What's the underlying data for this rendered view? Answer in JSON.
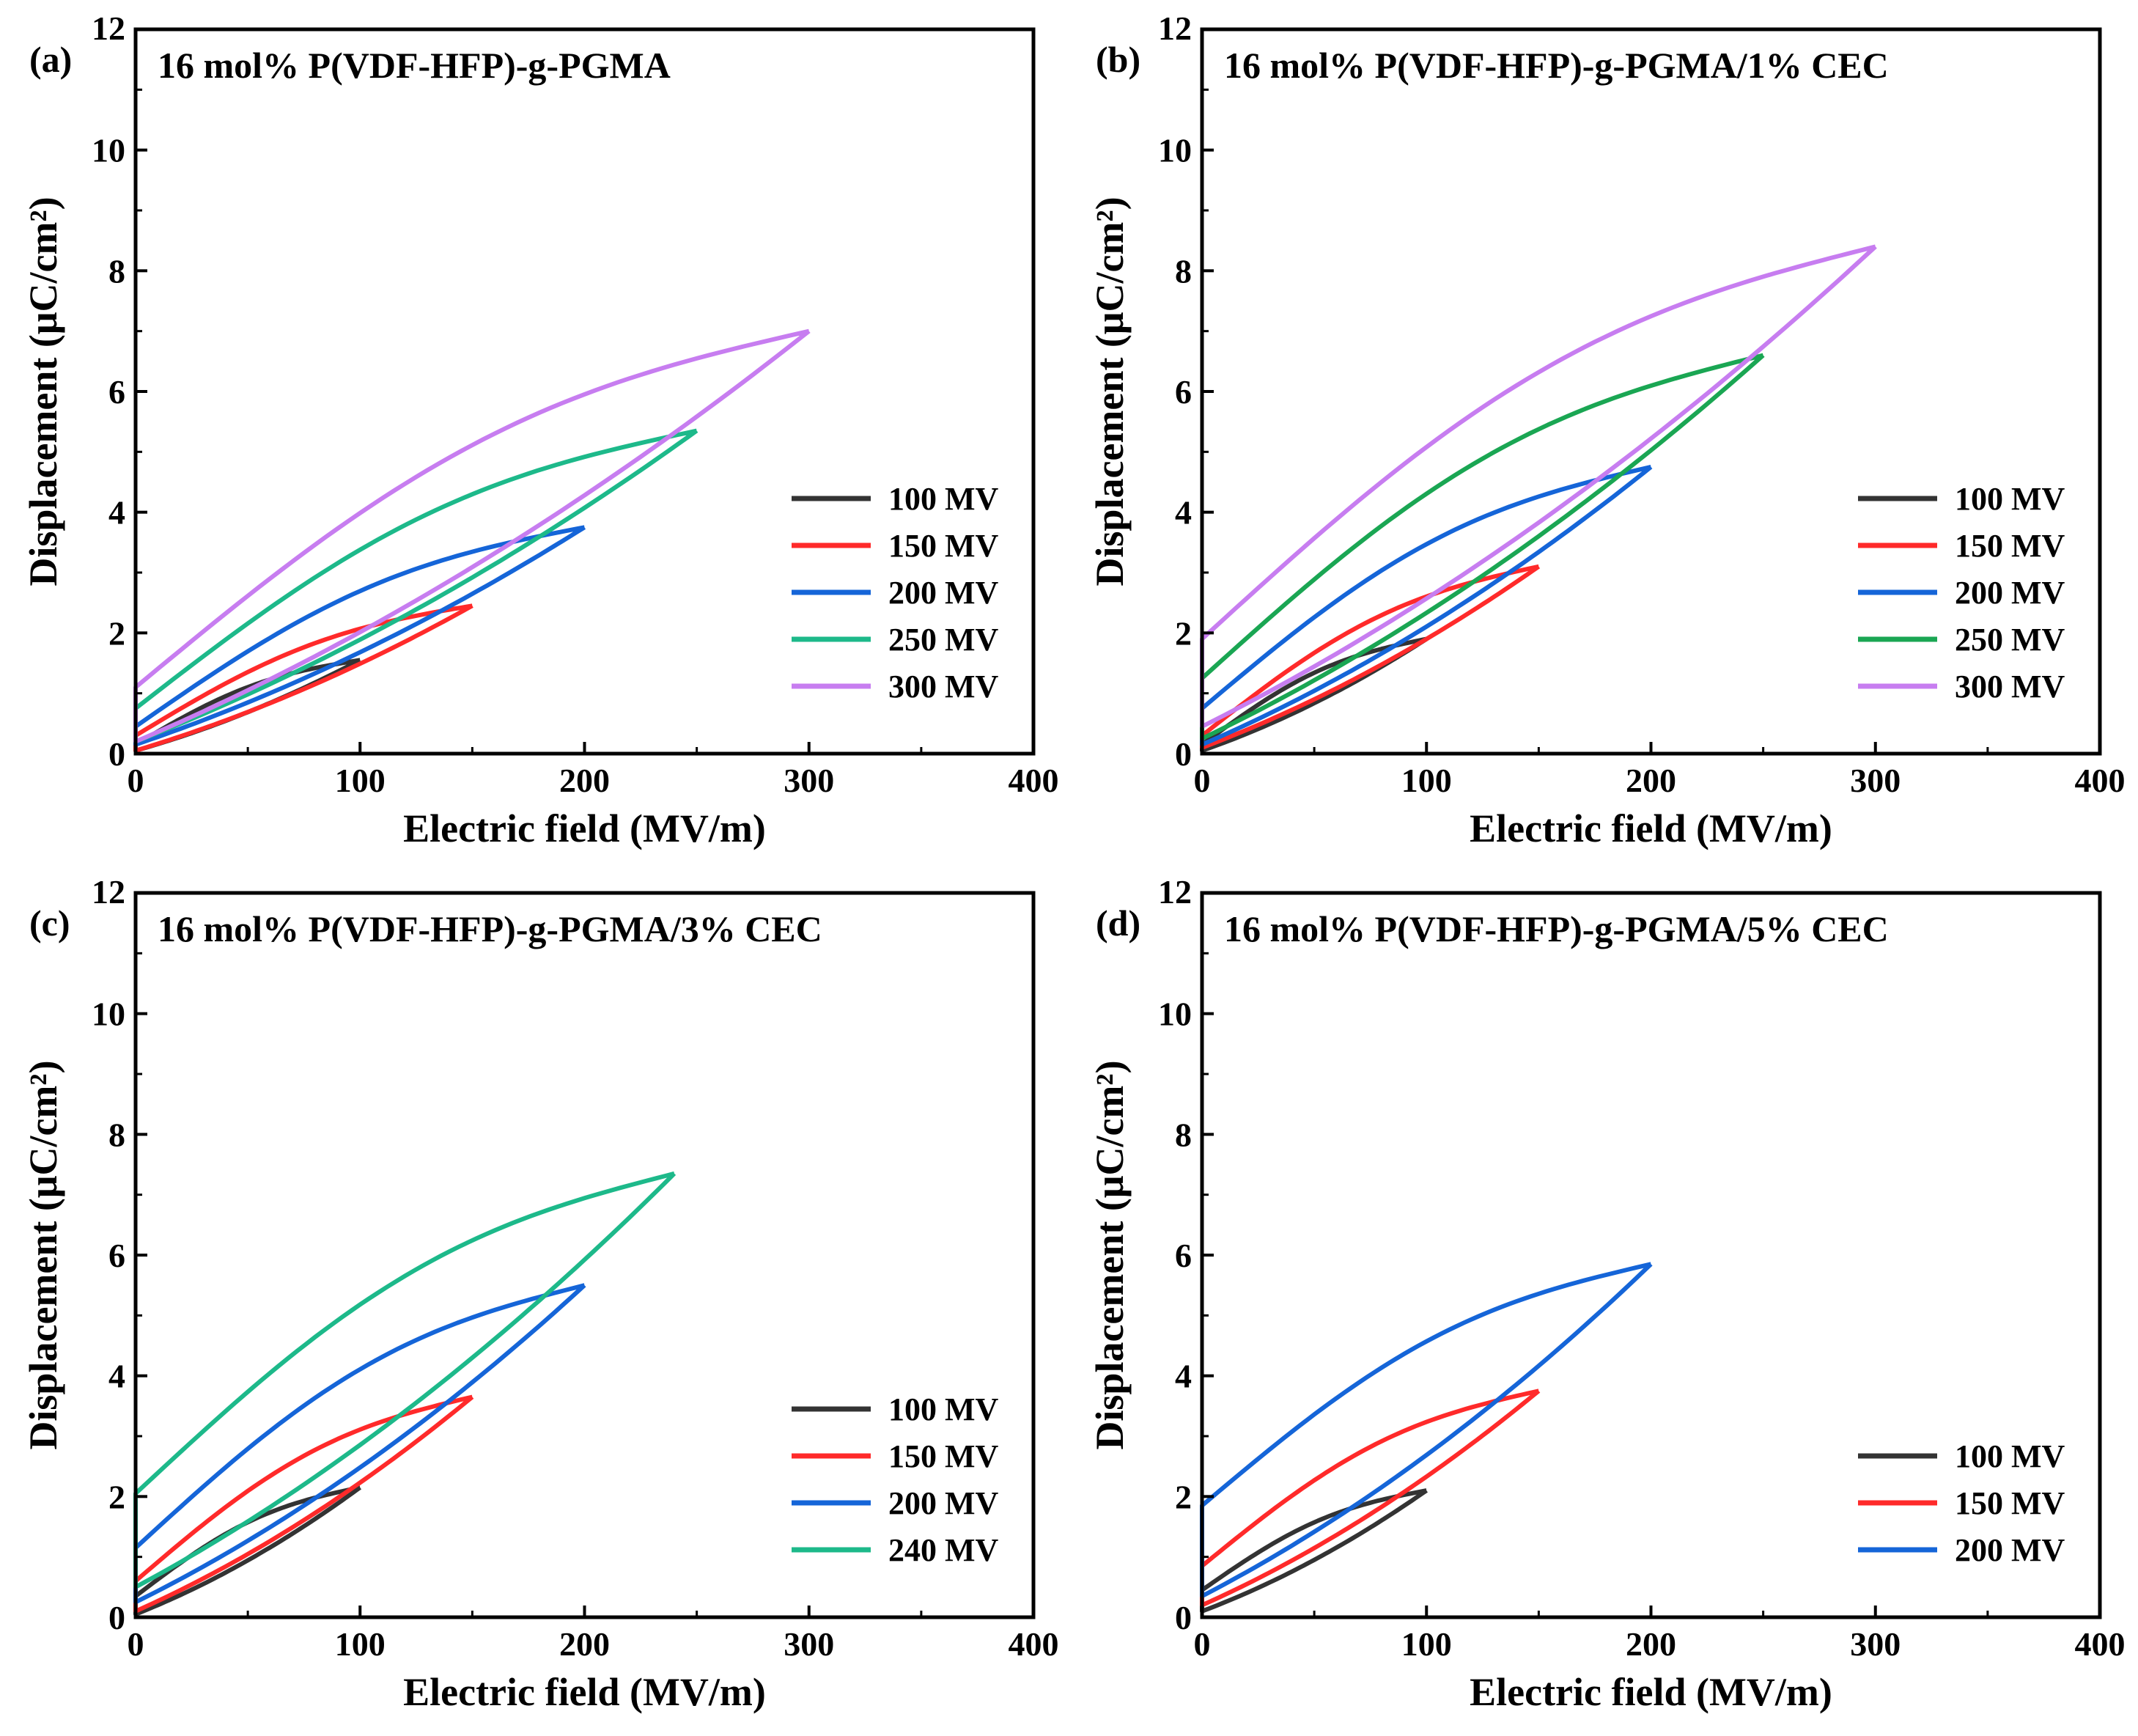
{
  "figure": {
    "description_free": true
  },
  "chart_data": [
    {
      "type": "line",
      "panel_label": "(a)",
      "title": "16 mol% P(VDF-HFP)-g-PGMA",
      "xlabel": "Electric field (MV/m)",
      "ylabel": "Displacement (μC/cm²)",
      "xlim": [
        0,
        400
      ],
      "ylim": [
        0,
        12
      ],
      "xticks": [
        "0",
        "100",
        "200",
        "300",
        "400"
      ],
      "yticks": [
        "0",
        "2",
        "4",
        "6",
        "8",
        "10",
        "12"
      ],
      "legend_position": "lower-right",
      "series": [
        {
          "name": "100 MV",
          "color": "#333333",
          "emax": 100,
          "dmax": 1.55,
          "d0": 0.15,
          "dr": 0.05
        },
        {
          "name": "150 MV",
          "color": "#ff2a2a",
          "emax": 150,
          "dmax": 2.45,
          "d0": 0.3,
          "dr": 0.05
        },
        {
          "name": "200 MV",
          "color": "#1565d8",
          "emax": 200,
          "dmax": 3.75,
          "d0": 0.45,
          "dr": 0.15
        },
        {
          "name": "250 MV",
          "color": "#1db98a",
          "emax": 250,
          "dmax": 5.35,
          "d0": 0.75,
          "dr": 0.2
        },
        {
          "name": "300 MV",
          "color": "#c77df0",
          "emax": 300,
          "dmax": 7.0,
          "d0": 1.1,
          "dr": 0.2
        }
      ]
    },
    {
      "type": "line",
      "panel_label": "(b)",
      "title": "16 mol% P(VDF-HFP)-g-PGMA/1% CEC",
      "xlabel": "Electric field (MV/m)",
      "ylabel": "Displacement (μC/cm²)",
      "xlim": [
        0,
        400
      ],
      "ylim": [
        0,
        12
      ],
      "xticks": [
        "0",
        "100",
        "200",
        "300",
        "400"
      ],
      "yticks": [
        "0",
        "2",
        "4",
        "6",
        "8",
        "10",
        "12"
      ],
      "legend_position": "lower-right",
      "series": [
        {
          "name": "100 MV",
          "color": "#333333",
          "emax": 100,
          "dmax": 1.9,
          "d0": 0.15,
          "dr": 0.05
        },
        {
          "name": "150 MV",
          "color": "#ff2a2a",
          "emax": 150,
          "dmax": 3.1,
          "d0": 0.3,
          "dr": 0.1
        },
        {
          "name": "200 MV",
          "color": "#1565d8",
          "emax": 200,
          "dmax": 4.75,
          "d0": 0.75,
          "dr": 0.15
        },
        {
          "name": "250 MV",
          "color": "#1aa653",
          "emax": 250,
          "dmax": 6.6,
          "d0": 1.25,
          "dr": 0.25
        },
        {
          "name": "300 MV",
          "color": "#c77df0",
          "emax": 300,
          "dmax": 8.4,
          "d0": 1.9,
          "dr": 0.45
        }
      ]
    },
    {
      "type": "line",
      "panel_label": "(c)",
      "title": "16 mol% P(VDF-HFP)-g-PGMA/3% CEC",
      "xlabel": "Electric field (MV/m)",
      "ylabel": "Displacement (μC/cm²)",
      "xlim": [
        0,
        400
      ],
      "ylim": [
        0,
        12
      ],
      "xticks": [
        "0",
        "100",
        "200",
        "300",
        "400"
      ],
      "yticks": [
        "0",
        "2",
        "4",
        "6",
        "8",
        "10",
        "12"
      ],
      "legend_position": "lower-right",
      "series": [
        {
          "name": "100 MV",
          "color": "#333333",
          "emax": 100,
          "dmax": 2.15,
          "d0": 0.35,
          "dr": 0.05
        },
        {
          "name": "150 MV",
          "color": "#ff2a2a",
          "emax": 150,
          "dmax": 3.65,
          "d0": 0.6,
          "dr": 0.1
        },
        {
          "name": "200 MV",
          "color": "#1565d8",
          "emax": 200,
          "dmax": 5.5,
          "d0": 1.15,
          "dr": 0.25
        },
        {
          "name": "240 MV",
          "color": "#1db98a",
          "emax": 240,
          "dmax": 7.35,
          "d0": 2.05,
          "dr": 0.5
        }
      ]
    },
    {
      "type": "line",
      "panel_label": "(d)",
      "title": "16 mol% P(VDF-HFP)-g-PGMA/5% CEC",
      "xlabel": "Electric field (MV/m)",
      "ylabel": "Displacement (μC/cm²)",
      "xlim": [
        0,
        400
      ],
      "ylim": [
        0,
        12
      ],
      "xticks": [
        "0",
        "100",
        "200",
        "300",
        "400"
      ],
      "yticks": [
        "0",
        "2",
        "4",
        "6",
        "8",
        "10",
        "12"
      ],
      "legend_position": "lower-right",
      "series": [
        {
          "name": "100 MV",
          "color": "#333333",
          "emax": 100,
          "dmax": 2.1,
          "d0": 0.45,
          "dr": 0.1
        },
        {
          "name": "150 MV",
          "color": "#ff2a2a",
          "emax": 150,
          "dmax": 3.75,
          "d0": 0.85,
          "dr": 0.2
        },
        {
          "name": "200 MV",
          "color": "#1565d8",
          "emax": 200,
          "dmax": 5.85,
          "d0": 1.85,
          "dr": 0.35
        }
      ]
    }
  ]
}
